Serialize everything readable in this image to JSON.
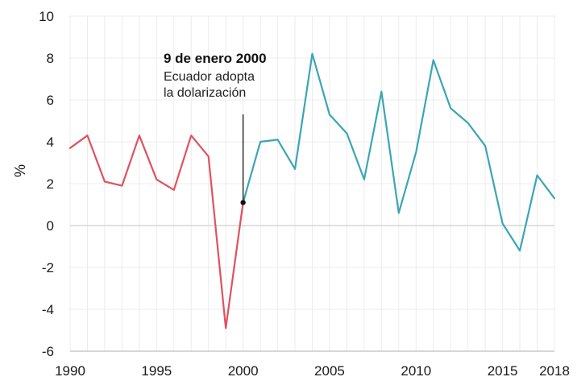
{
  "chart_data": {
    "type": "line",
    "title": "",
    "xlabel": "",
    "ylabel": "%",
    "xlim": [
      1990,
      2018
    ],
    "ylim": [
      -6,
      10
    ],
    "grid": "vertical and horizontal, light gray",
    "x_ticks": [
      "1990",
      "1995",
      "2000",
      "2005",
      "2010",
      "2015",
      "2018"
    ],
    "y_ticks": [
      "10",
      "8",
      "6",
      "4",
      "2",
      "0",
      "-2",
      "-4",
      "-6"
    ],
    "series": [
      {
        "color": "#e0515f",
        "x": [
          1990,
          1991,
          1992,
          1993,
          1994,
          1995,
          1996,
          1997,
          1998,
          1999,
          2000
        ],
        "values": [
          3.7,
          4.3,
          2.1,
          1.9,
          4.3,
          2.2,
          1.7,
          4.3,
          3.3,
          -4.9,
          1.1
        ]
      },
      {
        "color": "#3aa6b4",
        "x": [
          2000,
          2001,
          2002,
          2003,
          2004,
          2005,
          2006,
          2007,
          2008,
          2009,
          2010,
          2011,
          2012,
          2013,
          2014,
          2015,
          2016,
          2017,
          2018
        ],
        "values": [
          1.1,
          4.0,
          4.1,
          2.7,
          8.2,
          5.3,
          4.4,
          2.2,
          6.4,
          0.6,
          3.5,
          7.9,
          5.6,
          4.9,
          3.8,
          0.1,
          -1.2,
          2.4,
          1.3
        ]
      }
    ],
    "annotation": {
      "x": 2000,
      "y": 1.1,
      "title": "9 de enero 2000",
      "line1": "Ecuador adopta",
      "line2": "la dolarización"
    }
  }
}
